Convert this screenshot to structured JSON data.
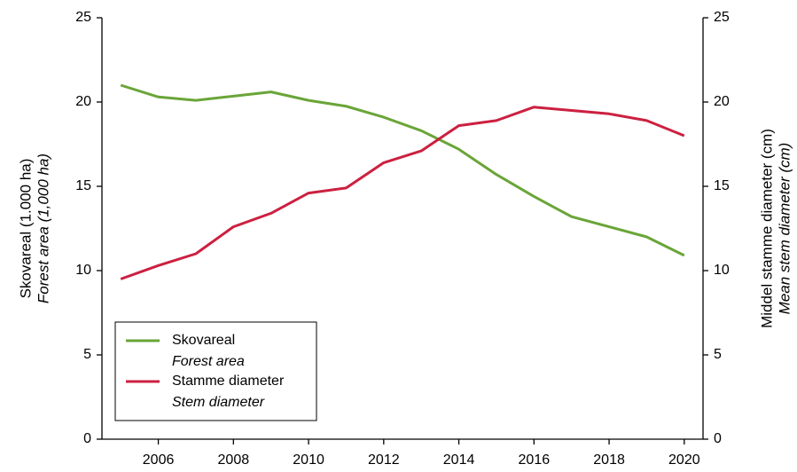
{
  "chart_data": {
    "type": "line",
    "x": [
      2005,
      2006,
      2007,
      2008,
      2009,
      2010,
      2011,
      2012,
      2013,
      2014,
      2015,
      2016,
      2017,
      2018,
      2019,
      2020
    ],
    "series": [
      {
        "name": "Skovareal",
        "name_en": "Forest area",
        "color": "#6aa538",
        "axis": "y",
        "values": [
          21.0,
          20.3,
          20.1,
          20.35,
          20.6,
          20.1,
          19.75,
          19.1,
          18.3,
          17.2,
          15.7,
          14.4,
          13.2,
          12.6,
          12.0,
          10.9
        ]
      },
      {
        "name": "Stamme diameter",
        "name_en": "Stem diameter",
        "color": "#cc2040",
        "axis": "y2",
        "values": [
          9.5,
          10.3,
          11.0,
          12.6,
          13.4,
          14.6,
          14.9,
          16.4,
          17.1,
          18.6,
          18.9,
          19.7,
          19.5,
          19.3,
          18.9,
          18.0
        ]
      }
    ],
    "ylabel": [
      "Skovareal (1.000 ha)",
      "Forest area (1,000 ha)"
    ],
    "y2label": [
      "Middel stamme diameter (cm)",
      "Mean stem diameter (cm)"
    ],
    "xlim": [
      2004.5,
      2020.5
    ],
    "xticks": [
      2006,
      2008,
      2010,
      2012,
      2014,
      2016,
      2018,
      2020
    ],
    "ylim": [
      0,
      25
    ],
    "yticks": [
      0,
      5,
      10,
      15,
      20,
      25
    ],
    "y2lim": [
      0,
      25
    ],
    "y2ticks": [
      0,
      5,
      10,
      15,
      20,
      25
    ],
    "legend": "lower left"
  }
}
